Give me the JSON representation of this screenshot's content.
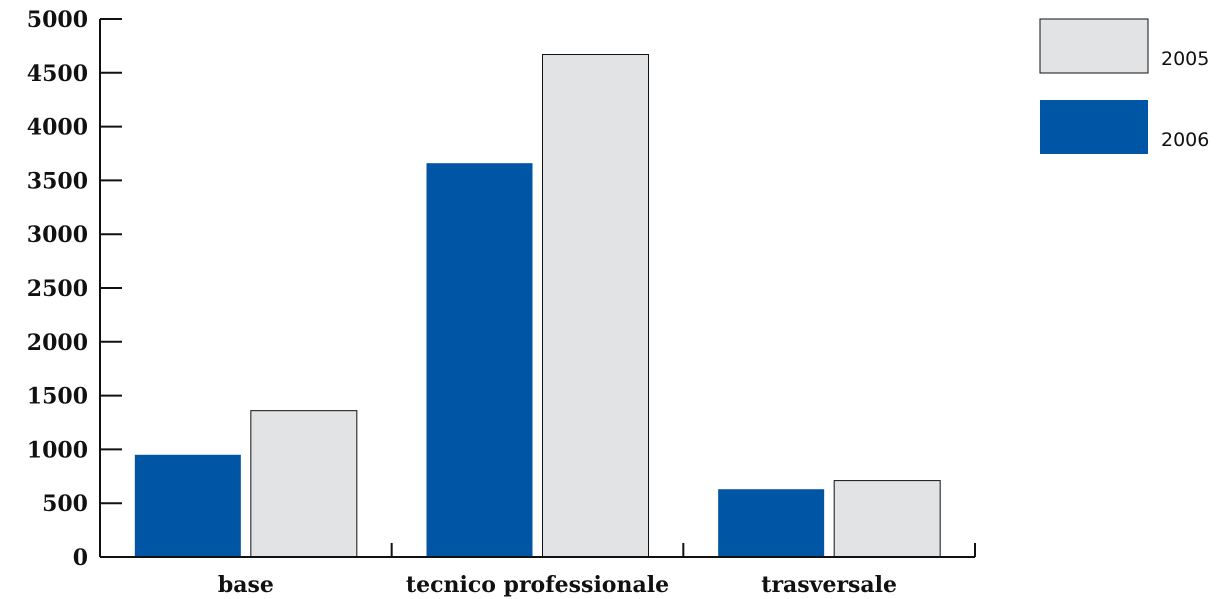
{
  "chart_data": {
    "type": "bar",
    "categories": [
      "base",
      "tecnico professionale",
      "trasversale"
    ],
    "series": [
      {
        "name": "2006",
        "color": "#0055a5",
        "values": [
          950,
          3660,
          630
        ]
      },
      {
        "name": "2005",
        "color": "#e2e3e4",
        "values": [
          1360,
          4670,
          710
        ]
      }
    ],
    "yticks": [
      "0",
      "500",
      "1000",
      "1500",
      "2000",
      "2500",
      "3000",
      "3500",
      "4000",
      "4500",
      "5000"
    ],
    "ylim": [
      0,
      5000
    ],
    "legend_order": [
      "2005",
      "2006"
    ],
    "legend_position": "top-right",
    "grid": false,
    "title": "",
    "xlabel": "",
    "ylabel": ""
  }
}
